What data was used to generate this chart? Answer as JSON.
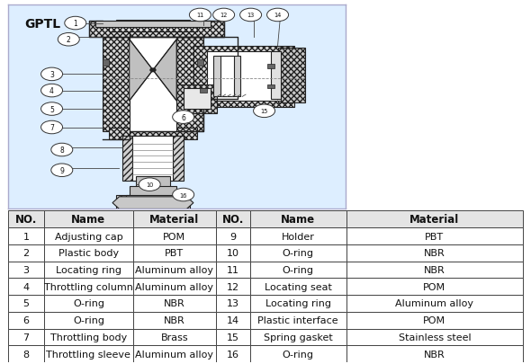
{
  "title": "GPTL",
  "bg_color": "#ffffff",
  "diagram_bg": "#ddeeff",
  "table_border_color": "#444444",
  "table_header": [
    "NO.",
    "Name",
    "Material",
    "NO.",
    "Name",
    "Material"
  ],
  "table_rows": [
    [
      "1",
      "Adjusting cap",
      "POM",
      "9",
      "Holder",
      "PBT"
    ],
    [
      "2",
      "Plastic body",
      "PBT",
      "10",
      "O-ring",
      "NBR"
    ],
    [
      "3",
      "Locating ring",
      "Aluminum alloy",
      "11",
      "O-ring",
      "NBR"
    ],
    [
      "4",
      "Throttling column",
      "Aluminum alloy",
      "12",
      "Locating seat",
      "POM"
    ],
    [
      "5",
      "O-ring",
      "NBR",
      "13",
      "Locating ring",
      "Aluminum alloy"
    ],
    [
      "6",
      "O-ring",
      "NBR",
      "14",
      "Plastic interface",
      "POM"
    ],
    [
      "7",
      "Throttling body",
      "Brass",
      "15",
      "Spring gasket",
      "Stainless steel"
    ],
    [
      "8",
      "Throttling sleeve",
      "Aluminum alloy",
      "16",
      "O-ring",
      "NBR"
    ]
  ],
  "col_starts": [
    0.005,
    0.075,
    0.245,
    0.405,
    0.47,
    0.655
  ],
  "col_ends": [
    0.075,
    0.245,
    0.405,
    0.47,
    0.655,
    0.995
  ],
  "font_size_table": 8.0,
  "font_size_header": 8.5,
  "hatch_color": "#555555",
  "line_color": "#222222",
  "fill_light": "#e8e8e8",
  "fill_white": "#ffffff",
  "fill_mid": "#d0d0d0",
  "fill_dark": "#b0b0b0"
}
